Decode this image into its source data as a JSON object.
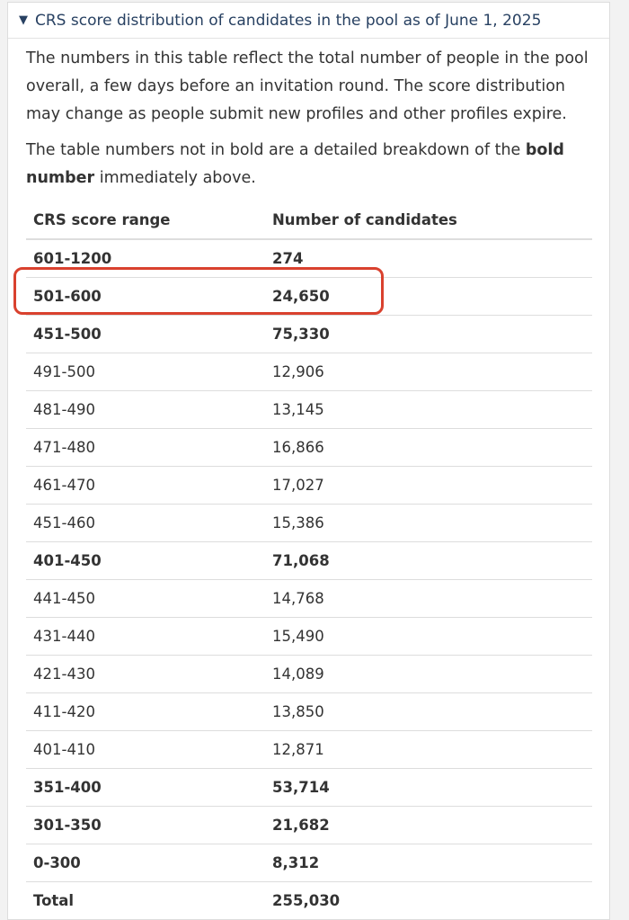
{
  "summary": {
    "toggle_glyph": "▼",
    "title": "CRS score distribution of candidates in the pool as of June 1, 2025"
  },
  "intro": {
    "para1": "The numbers in this table reflect the total number of people in the pool overall, a few days before an invitation round. The score distribution may change as people submit new profiles and other profiles expire.",
    "para2_prefix": "The table numbers not in bold are a detailed breakdown of the ",
    "para2_bold": "bold number",
    "para2_suffix": " immediately above."
  },
  "table": {
    "headers": [
      "CRS score range",
      "Number of candidates"
    ],
    "rows": [
      {
        "range": "601-1200",
        "count": "274",
        "bold": true
      },
      {
        "range": "501-600",
        "count": "24,650",
        "bold": true,
        "highlighted": true
      },
      {
        "range": "451-500",
        "count": "75,330",
        "bold": true
      },
      {
        "range": "491-500",
        "count": "12,906",
        "bold": false
      },
      {
        "range": "481-490",
        "count": "13,145",
        "bold": false
      },
      {
        "range": "471-480",
        "count": "16,866",
        "bold": false
      },
      {
        "range": "461-470",
        "count": "17,027",
        "bold": false
      },
      {
        "range": "451-460",
        "count": "15,386",
        "bold": false
      },
      {
        "range": "401-450",
        "count": "71,068",
        "bold": true
      },
      {
        "range": "441-450",
        "count": "14,768",
        "bold": false
      },
      {
        "range": "431-440",
        "count": "15,490",
        "bold": false
      },
      {
        "range": "421-430",
        "count": "14,089",
        "bold": false
      },
      {
        "range": "411-420",
        "count": "13,850",
        "bold": false
      },
      {
        "range": "401-410",
        "count": "12,871",
        "bold": false
      },
      {
        "range": "351-400",
        "count": "53,714",
        "bold": true
      },
      {
        "range": "301-350",
        "count": "21,682",
        "bold": true
      },
      {
        "range": "0-300",
        "count": "8,312",
        "bold": true
      },
      {
        "range": "Total",
        "count": "255,030",
        "bold": true,
        "total": true
      }
    ]
  },
  "colors": {
    "summary_link": "#284162",
    "highlight_border": "#d9412e",
    "text": "#333333",
    "row_border": "#dddddd"
  }
}
